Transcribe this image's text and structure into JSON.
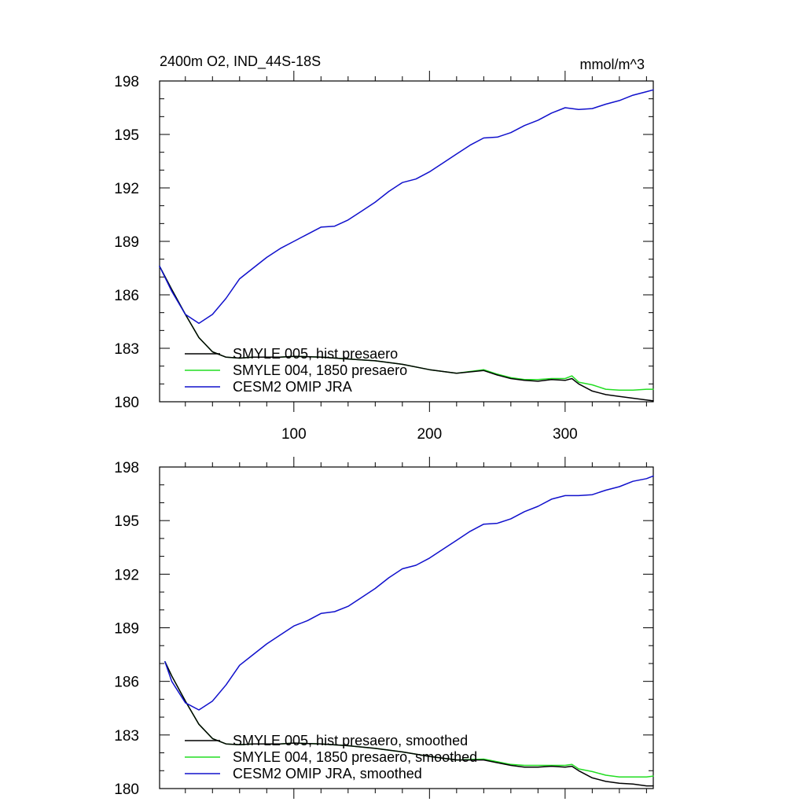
{
  "chart_data": [
    {
      "type": "line",
      "title": "2400m O2, IND_44S-18S",
      "units": "mmol/m^3",
      "xlim": [
        1,
        365
      ],
      "ylim": [
        180,
        198
      ],
      "xticks": [
        100,
        200,
        300
      ],
      "xtick_labels": [
        "100",
        "200",
        "300"
      ],
      "yticks": [
        180,
        183,
        186,
        189,
        192,
        195,
        198
      ],
      "ytick_labels": [
        "180",
        "183",
        "186",
        "189",
        "192",
        "195",
        "198"
      ],
      "legend_position": "bottom-left",
      "series": [
        {
          "name": "SMYLE 005, hist presaero",
          "color": "#000000",
          "x": [
            1,
            10,
            20,
            30,
            40,
            50,
            60,
            70,
            80,
            90,
            100,
            120,
            140,
            160,
            180,
            200,
            220,
            240,
            250,
            260,
            270,
            280,
            290,
            300,
            305,
            310,
            320,
            330,
            340,
            350,
            360,
            365
          ],
          "values": [
            187.6,
            186.3,
            184.9,
            183.6,
            182.8,
            182.5,
            182.45,
            182.5,
            182.5,
            182.5,
            182.55,
            182.5,
            182.4,
            182.3,
            182.1,
            181.8,
            181.6,
            181.75,
            181.5,
            181.3,
            181.2,
            181.15,
            181.25,
            181.2,
            181.3,
            181.0,
            180.6,
            180.4,
            180.3,
            180.2,
            180.1,
            180.05
          ]
        },
        {
          "name": "SMYLE 004, 1850 presaero",
          "color": "#22dd22",
          "x": [
            1,
            10,
            20,
            30,
            40,
            50,
            60,
            70,
            80,
            90,
            100,
            120,
            140,
            160,
            180,
            200,
            220,
            240,
            250,
            260,
            270,
            280,
            290,
            300,
            305,
            310,
            320,
            330,
            340,
            350,
            360,
            365
          ],
          "values": [
            187.6,
            186.3,
            184.9,
            183.6,
            182.8,
            182.5,
            182.45,
            182.5,
            182.5,
            182.5,
            182.55,
            182.5,
            182.4,
            182.3,
            182.1,
            181.8,
            181.6,
            181.8,
            181.55,
            181.35,
            181.25,
            181.25,
            181.3,
            181.3,
            181.45,
            181.1,
            180.95,
            180.7,
            180.65,
            180.65,
            180.7,
            180.7
          ]
        },
        {
          "name": "CESM2 OMIP JRA",
          "color": "#1010cc",
          "x": [
            1,
            10,
            20,
            30,
            40,
            50,
            60,
            70,
            80,
            90,
            100,
            110,
            120,
            130,
            140,
            150,
            160,
            170,
            180,
            190,
            200,
            210,
            220,
            230,
            240,
            250,
            260,
            270,
            280,
            290,
            300,
            310,
            320,
            330,
            340,
            350,
            360,
            365
          ],
          "values": [
            187.6,
            186.2,
            184.9,
            184.4,
            184.9,
            185.8,
            186.9,
            187.5,
            188.1,
            188.6,
            189.0,
            189.4,
            189.8,
            189.85,
            190.2,
            190.7,
            191.2,
            191.8,
            192.3,
            192.5,
            192.9,
            193.4,
            193.9,
            194.4,
            194.8,
            194.85,
            195.1,
            195.5,
            195.8,
            196.2,
            196.5,
            196.4,
            196.45,
            196.7,
            196.9,
            197.2,
            197.4,
            197.5
          ]
        }
      ]
    },
    {
      "type": "line",
      "title": "",
      "units": "",
      "xlim": [
        1,
        365
      ],
      "ylim": [
        180,
        198
      ],
      "xticks": [
        100,
        200,
        300
      ],
      "xtick_labels": [],
      "yticks": [
        180,
        183,
        186,
        189,
        192,
        195,
        198
      ],
      "ytick_labels": [
        "180",
        "183",
        "186",
        "189",
        "192",
        "195",
        "198"
      ],
      "legend_position": "bottom-left",
      "series": [
        {
          "name": "SMYLE 005, hist presaero, smoothed",
          "color": "#000000",
          "x": [
            5,
            10,
            20,
            30,
            40,
            50,
            60,
            70,
            80,
            90,
            100,
            120,
            140,
            160,
            180,
            200,
            220,
            240,
            250,
            260,
            270,
            280,
            290,
            300,
            305,
            310,
            320,
            330,
            340,
            350,
            360,
            365
          ],
          "values": [
            187.1,
            186.3,
            184.9,
            183.6,
            182.8,
            182.5,
            182.45,
            182.5,
            182.5,
            182.5,
            182.55,
            182.5,
            182.4,
            182.25,
            182.05,
            181.8,
            181.6,
            181.6,
            181.45,
            181.3,
            181.2,
            181.2,
            181.25,
            181.2,
            181.25,
            181.0,
            180.6,
            180.4,
            180.3,
            180.25,
            180.15,
            180.15
          ]
        },
        {
          "name": "SMYLE 004, 1850 presaero, smoothed",
          "color": "#22dd22",
          "x": [
            5,
            10,
            20,
            30,
            40,
            50,
            60,
            70,
            80,
            90,
            100,
            120,
            140,
            160,
            180,
            200,
            220,
            240,
            250,
            260,
            270,
            280,
            290,
            300,
            305,
            310,
            320,
            330,
            340,
            350,
            360,
            365
          ],
          "values": [
            187.1,
            186.3,
            184.9,
            183.6,
            182.8,
            182.5,
            182.45,
            182.5,
            182.5,
            182.5,
            182.55,
            182.5,
            182.4,
            182.25,
            182.05,
            181.8,
            181.6,
            181.65,
            181.5,
            181.35,
            181.3,
            181.3,
            181.3,
            181.3,
            181.35,
            181.1,
            180.95,
            180.75,
            180.65,
            180.65,
            180.65,
            180.7
          ]
        },
        {
          "name": "CESM2 OMIP JRA, smoothed",
          "color": "#1010cc",
          "x": [
            5,
            10,
            20,
            30,
            40,
            50,
            60,
            70,
            80,
            90,
            100,
            110,
            120,
            130,
            140,
            150,
            160,
            170,
            180,
            190,
            200,
            210,
            220,
            230,
            240,
            250,
            260,
            270,
            280,
            290,
            300,
            310,
            320,
            330,
            340,
            350,
            360,
            365
          ],
          "values": [
            187.1,
            186.0,
            184.8,
            184.4,
            184.9,
            185.8,
            186.9,
            187.5,
            188.1,
            188.6,
            189.1,
            189.4,
            189.8,
            189.9,
            190.2,
            190.7,
            191.2,
            191.8,
            192.3,
            192.5,
            192.9,
            193.4,
            193.9,
            194.4,
            194.8,
            194.85,
            195.1,
            195.5,
            195.8,
            196.2,
            196.4,
            196.4,
            196.45,
            196.7,
            196.9,
            197.2,
            197.35,
            197.5
          ]
        }
      ]
    }
  ]
}
